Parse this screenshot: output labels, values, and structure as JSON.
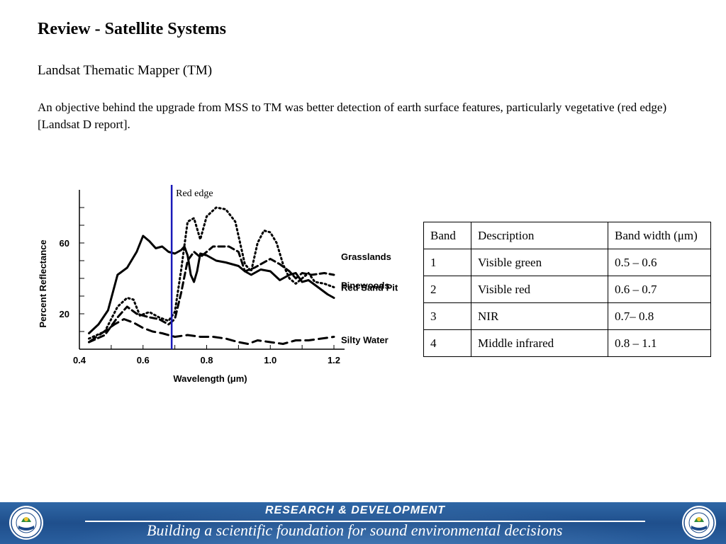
{
  "slide": {
    "title": "Review - Satellite Systems",
    "subtitle": "Landsat Thematic Mapper (TM)",
    "body": "An objective behind the upgrade from MSS to TM was better detection of earth surface features, particularly vegetative (red edge) [Landsat D report]."
  },
  "chart_data": {
    "type": "line",
    "title": "",
    "xlabel": "Wavelength (μm)",
    "ylabel": "Percent Reflectance",
    "xlim": [
      0.4,
      1.2
    ],
    "ylim": [
      0,
      90
    ],
    "xticks": [
      "0.4",
      "0.6",
      "0.8",
      "1.0",
      "1.2"
    ],
    "yticks": [
      "20",
      "60"
    ],
    "annotation": {
      "text": "Red edge",
      "x": 0.69
    },
    "series": [
      {
        "name": "Pinewoods",
        "style": "solid",
        "points": [
          [
            0.43,
            9
          ],
          [
            0.46,
            14
          ],
          [
            0.49,
            22
          ],
          [
            0.52,
            42
          ],
          [
            0.55,
            46
          ],
          [
            0.58,
            55
          ],
          [
            0.6,
            64
          ],
          [
            0.62,
            61
          ],
          [
            0.64,
            57
          ],
          [
            0.66,
            58
          ],
          [
            0.68,
            55
          ],
          [
            0.7,
            54
          ],
          [
            0.72,
            56
          ],
          [
            0.73,
            58
          ],
          [
            0.74,
            53
          ],
          [
            0.75,
            42
          ],
          [
            0.76,
            38
          ],
          [
            0.77,
            44
          ],
          [
            0.78,
            54
          ],
          [
            0.8,
            53
          ],
          [
            0.83,
            50
          ],
          [
            0.86,
            49
          ],
          [
            0.9,
            47
          ],
          [
            0.92,
            44
          ],
          [
            0.94,
            42
          ],
          [
            0.97,
            45
          ],
          [
            1.0,
            44
          ],
          [
            1.03,
            39
          ],
          [
            1.06,
            42
          ],
          [
            1.08,
            43
          ],
          [
            1.1,
            38
          ],
          [
            1.12,
            39
          ],
          [
            1.15,
            35
          ],
          [
            1.18,
            31
          ],
          [
            1.2,
            29
          ]
        ]
      },
      {
        "name": "Grasslands",
        "style": "dashed",
        "points": [
          [
            0.43,
            4
          ],
          [
            0.48,
            8
          ],
          [
            0.52,
            18
          ],
          [
            0.55,
            24
          ],
          [
            0.58,
            20
          ],
          [
            0.62,
            18
          ],
          [
            0.65,
            17
          ],
          [
            0.68,
            14
          ],
          [
            0.7,
            17
          ],
          [
            0.72,
            32
          ],
          [
            0.74,
            50
          ],
          [
            0.76,
            55
          ],
          [
            0.78,
            52
          ],
          [
            0.82,
            58
          ],
          [
            0.87,
            58
          ],
          [
            0.9,
            55
          ],
          [
            0.92,
            44
          ],
          [
            0.95,
            46
          ],
          [
            1.0,
            51
          ],
          [
            1.03,
            48
          ],
          [
            1.06,
            44
          ],
          [
            1.08,
            40
          ],
          [
            1.1,
            43
          ],
          [
            1.13,
            42
          ],
          [
            1.17,
            43
          ],
          [
            1.2,
            42
          ]
        ]
      },
      {
        "name": "Red Sand Pit",
        "style": "dotted",
        "points": [
          [
            0.43,
            6
          ],
          [
            0.48,
            10
          ],
          [
            0.52,
            24
          ],
          [
            0.55,
            29
          ],
          [
            0.57,
            28
          ],
          [
            0.59,
            19
          ],
          [
            0.62,
            21
          ],
          [
            0.65,
            18
          ],
          [
            0.68,
            16
          ],
          [
            0.7,
            21
          ],
          [
            0.72,
            45
          ],
          [
            0.74,
            72
          ],
          [
            0.76,
            74
          ],
          [
            0.78,
            62
          ],
          [
            0.8,
            75
          ],
          [
            0.83,
            80
          ],
          [
            0.86,
            79
          ],
          [
            0.89,
            72
          ],
          [
            0.92,
            48
          ],
          [
            0.94,
            44
          ],
          [
            0.96,
            60
          ],
          [
            0.98,
            67
          ],
          [
            1.0,
            66
          ],
          [
            1.02,
            60
          ],
          [
            1.04,
            48
          ],
          [
            1.06,
            40
          ],
          [
            1.08,
            37
          ],
          [
            1.1,
            40
          ],
          [
            1.12,
            43
          ],
          [
            1.14,
            38
          ],
          [
            1.17,
            37
          ],
          [
            1.2,
            35
          ]
        ]
      },
      {
        "name": "Silty Water",
        "style": "long-dashed",
        "points": [
          [
            0.43,
            4
          ],
          [
            0.47,
            9
          ],
          [
            0.51,
            14
          ],
          [
            0.54,
            17
          ],
          [
            0.57,
            15
          ],
          [
            0.6,
            12
          ],
          [
            0.63,
            10
          ],
          [
            0.66,
            9
          ],
          [
            0.68,
            8
          ],
          [
            0.7,
            7
          ],
          [
            0.74,
            8
          ],
          [
            0.78,
            7
          ],
          [
            0.82,
            7
          ],
          [
            0.86,
            6
          ],
          [
            0.9,
            4
          ],
          [
            0.93,
            3
          ],
          [
            0.96,
            5
          ],
          [
            1.0,
            4
          ],
          [
            1.04,
            3
          ],
          [
            1.08,
            5
          ],
          [
            1.12,
            5
          ],
          [
            1.16,
            6
          ],
          [
            1.2,
            7
          ]
        ]
      }
    ]
  },
  "table": {
    "headers": [
      "Band",
      "Description",
      "Band width (μm)"
    ],
    "rows": [
      [
        "1",
        "Visible green",
        "0.5 – 0.6"
      ],
      [
        "2",
        "Visible red",
        "0.6 – 0.7"
      ],
      [
        "3",
        "NIR",
        "0.7– 0.8"
      ],
      [
        "4",
        "Middle infrared",
        "0.8 – 1.1"
      ]
    ]
  },
  "footer": {
    "line1": "RESEARCH &  DEVELOPMENT",
    "line2": "Building a scientific foundation for sound environmental decisions",
    "colors": {
      "band": "#2a5f9f",
      "text": "#ffffff"
    }
  }
}
